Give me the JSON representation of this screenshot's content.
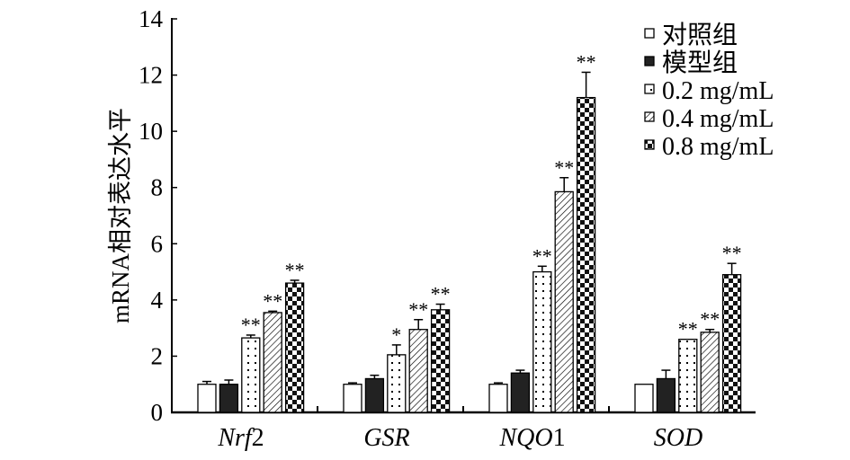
{
  "chart_data": {
    "type": "bar",
    "title": "",
    "xlabel": "",
    "ylabel": "mRNA相对表达水平",
    "ylim": [
      0,
      14
    ],
    "yticks": [
      0,
      2,
      4,
      6,
      8,
      10,
      12,
      14
    ],
    "categories": [
      "Nrf2",
      "GSR",
      "NQO1",
      "SOD"
    ],
    "category_parts": [
      {
        "italic": "Nrf",
        "plain": "2"
      },
      {
        "italic": "GSR",
        "plain": ""
      },
      {
        "italic": "NQO",
        "plain": "1"
      },
      {
        "italic": "SOD",
        "plain": ""
      }
    ],
    "legend_position": "top-right",
    "series": [
      {
        "name": "对照组",
        "pattern": "white",
        "values": [
          1.0,
          1.0,
          1.0,
          1.0
        ],
        "errors": [
          0.1,
          0.05,
          0.05,
          0.0
        ],
        "significance": [
          "",
          "",
          "",
          ""
        ]
      },
      {
        "name": "模型组",
        "pattern": "black",
        "values": [
          1.0,
          1.2,
          1.4,
          1.2
        ],
        "errors": [
          0.15,
          0.12,
          0.1,
          0.3
        ],
        "significance": [
          "",
          "",
          "",
          ""
        ]
      },
      {
        "name": "0.2 mg/mL",
        "pattern": "dots",
        "values": [
          2.65,
          2.05,
          5.0,
          2.6
        ],
        "errors": [
          0.1,
          0.35,
          0.2,
          0.0
        ],
        "significance": [
          "**",
          "*",
          "**",
          "**"
        ]
      },
      {
        "name": "0.4 mg/mL",
        "pattern": "hatch",
        "values": [
          3.55,
          2.95,
          7.85,
          2.85
        ],
        "errors": [
          0.05,
          0.35,
          0.5,
          0.1
        ],
        "significance": [
          "**",
          "**",
          "**",
          "**"
        ]
      },
      {
        "name": "0.8 mg/mL",
        "pattern": "checker",
        "values": [
          4.6,
          3.65,
          11.2,
          4.9
        ],
        "errors": [
          0.1,
          0.2,
          0.9,
          0.4
        ],
        "significance": [
          "**",
          "**",
          "**",
          "**"
        ]
      }
    ]
  }
}
